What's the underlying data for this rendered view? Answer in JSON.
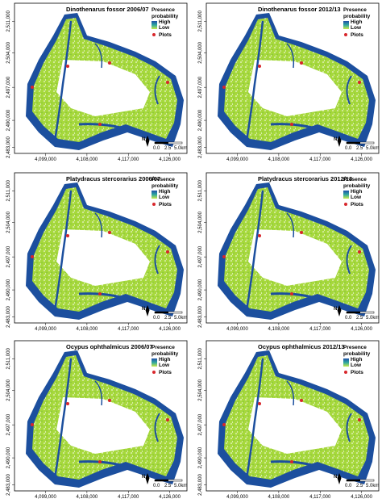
{
  "panels": [
    {
      "title": "Dinothenarus fossor 2006/07"
    },
    {
      "title": "Dinothenarus fossor 2012/13"
    },
    {
      "title": "Platydracus stercorarius 2006/07"
    },
    {
      "title": "Platydracus stercorarius 2012/13"
    },
    {
      "title": "Ocypus ophthalmicus 2006/07"
    },
    {
      "title": "Ocypus ophthalmicus 2012/13"
    }
  ],
  "legend": {
    "title": [
      "Presence",
      "probability"
    ],
    "high": "High",
    "low": "Low",
    "plots": "Plots"
  },
  "y_labels": [
    "2,511,000",
    "2,504,000",
    "2,497,000",
    "2,490,000",
    "2,483,000"
  ],
  "x_labels": [
    "4,099,000",
    "4,108,000",
    "4,117,000",
    "4,126,000"
  ],
  "scale": [
    "0.0",
    "2.5",
    "5.0km"
  ],
  "north": "N"
}
